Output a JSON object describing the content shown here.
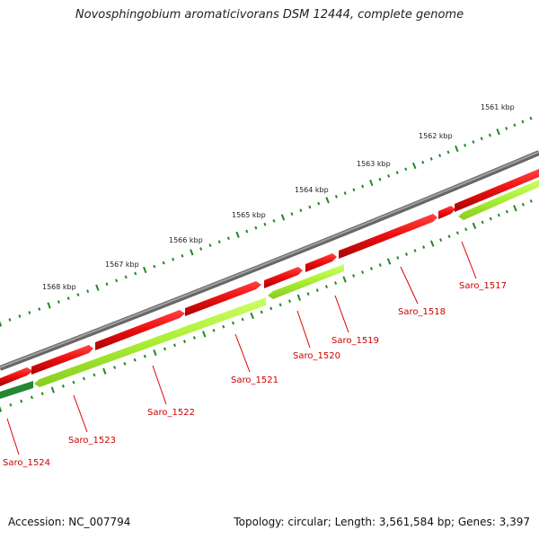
{
  "title": "Novosphingobium aromaticivorans DSM 12444, complete genome",
  "footer": {
    "accession": "Accession: NC_007794",
    "topology": "Topology: circular; Length: 3,561,584 bp; Genes: 3,397"
  },
  "colors": {
    "backbone": "#888888",
    "forward_gene": "#ee1111",
    "reverse_gene": "#aaee33",
    "reverse_gene_dark": "#228833",
    "tick": "#228822",
    "label": "#cc0000"
  },
  "kbp_ticks": [
    {
      "label": "1561 kbp"
    },
    {
      "label": "1562 kbp"
    },
    {
      "label": "1563 kbp"
    },
    {
      "label": "1564 kbp"
    },
    {
      "label": "1565 kbp"
    },
    {
      "label": "1566 kbp"
    },
    {
      "label": "1567 kbp"
    },
    {
      "label": "1568 kbp"
    }
  ],
  "gene_labels": [
    {
      "label": "Saro_1517"
    },
    {
      "label": "Saro_1518"
    },
    {
      "label": "Saro_1519"
    },
    {
      "label": "Saro_1520"
    },
    {
      "label": "Saro_1521"
    },
    {
      "label": "Saro_1522"
    },
    {
      "label": "Saro_1523"
    },
    {
      "label": "Saro_1524"
    }
  ]
}
